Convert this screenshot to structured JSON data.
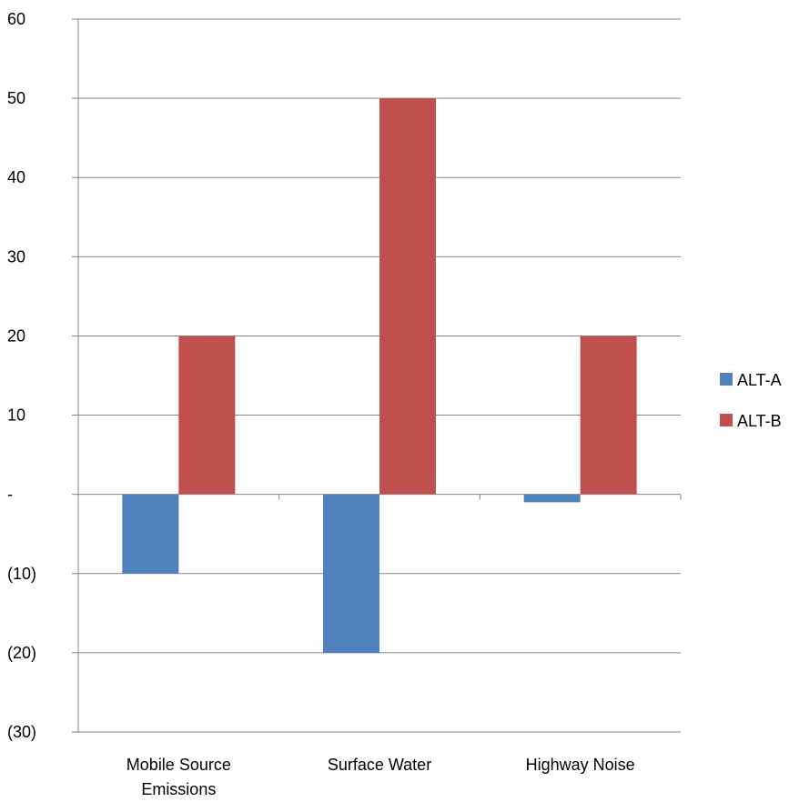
{
  "chart_data": {
    "type": "bar",
    "title": "",
    "xlabel": "",
    "ylabel": "",
    "categories": [
      [
        "Mobile Source",
        "Emissions"
      ],
      [
        "Surface Water"
      ],
      [
        "Highway Noise"
      ]
    ],
    "series": [
      {
        "name": "ALT-A",
        "color": "#4F81BD",
        "values": [
          -10,
          -20,
          -1
        ]
      },
      {
        "name": "ALT-B",
        "color": "#C0504D",
        "values": [
          20,
          50,
          20
        ]
      }
    ],
    "ylim": [
      -30,
      60
    ],
    "yticks": [
      60,
      50,
      40,
      30,
      20,
      10,
      0,
      -10,
      -20,
      -30
    ],
    "ytick_labels": [
      "60",
      "50",
      "40",
      "30",
      "20",
      "10",
      "-",
      "(10)",
      "(20)",
      "(30)"
    ],
    "grid": true,
    "legend_position": "right"
  }
}
